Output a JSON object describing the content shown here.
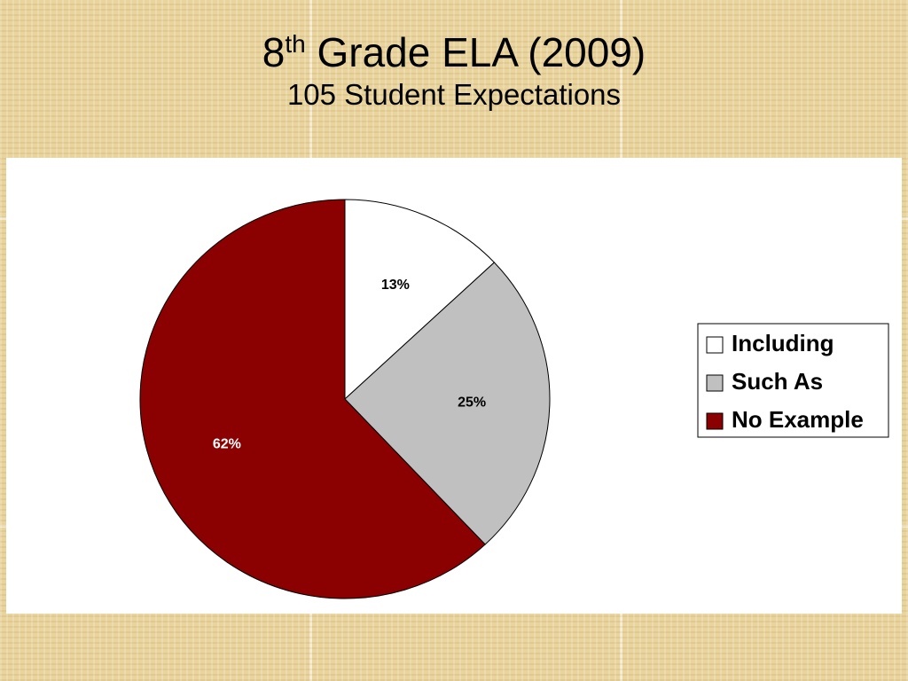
{
  "chart_data": {
    "type": "pie",
    "title": [
      "8",
      "th",
      "Grade ELA (2009)"
    ],
    "subtitle": "105 Student Expectations",
    "categories": [
      "Including",
      "Such As",
      "No Example"
    ],
    "values": [
      13,
      25,
      62
    ],
    "value_labels": [
      "13%",
      "25%",
      "62%"
    ],
    "colors": [
      "#ffffff",
      "#c0c0c0",
      "#8b0000"
    ],
    "label_colors": [
      "#000000",
      "#000000",
      "#ffffff"
    ],
    "legend": "right"
  }
}
